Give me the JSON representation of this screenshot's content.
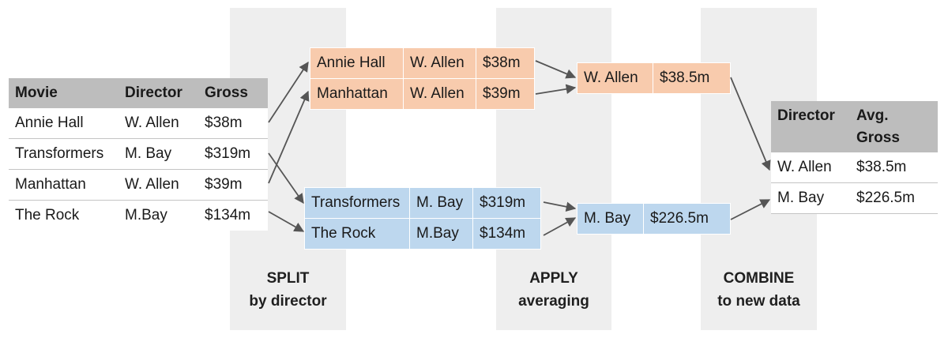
{
  "stages": [
    {
      "line1": "SPLIT",
      "line2": "by director"
    },
    {
      "line1": "APPLY",
      "line2": "averaging"
    },
    {
      "line1": "COMBINE",
      "line2": "to new data"
    }
  ],
  "source_table": {
    "headers": [
      "Movie",
      "Director",
      "Gross"
    ],
    "rows": [
      [
        "Annie Hall",
        "W. Allen",
        "$38m"
      ],
      [
        "Transformers",
        "M. Bay",
        "$319m"
      ],
      [
        "Manhattan",
        "W. Allen",
        "$39m"
      ],
      [
        "The Rock",
        "M.Bay",
        "$134m"
      ]
    ]
  },
  "split_groups": [
    {
      "color": "#f8cbad",
      "rows": [
        [
          "Annie Hall",
          "W. Allen",
          "$38m"
        ],
        [
          "Manhattan",
          "W. Allen",
          "$39m"
        ]
      ]
    },
    {
      "color": "#bdd7ee",
      "rows": [
        [
          "Transformers",
          "M. Bay",
          "$319m"
        ],
        [
          "The Rock",
          "M.Bay",
          "$134m"
        ]
      ]
    }
  ],
  "apply_results": [
    {
      "color": "#f8cbad",
      "director": "W. Allen",
      "value": "$38.5m"
    },
    {
      "color": "#bdd7ee",
      "director": "M. Bay",
      "value": "$226.5m"
    }
  ],
  "result_table": {
    "headers": [
      "Director",
      "Avg.\nGross"
    ],
    "rows": [
      [
        "W. Allen",
        "$38.5m"
      ],
      [
        "M. Bay",
        "$226.5m"
      ]
    ]
  }
}
